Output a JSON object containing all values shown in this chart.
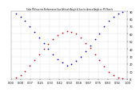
{
  "title": "Solar PV/Inverter Performance Sun Altitude Angle & Sun Incidence Angle on PV Panels",
  "bg_color": "#ffffff",
  "grid_color": "#888888",
  "red_color": "#cc0000",
  "blue_color": "#0000cc",
  "ylim": [
    0,
    90
  ],
  "sun_altitude_x": [
    0.04,
    0.08,
    0.12,
    0.16,
    0.2,
    0.24,
    0.28,
    0.32,
    0.36,
    0.4,
    0.44,
    0.48,
    0.52,
    0.56,
    0.6,
    0.64,
    0.68,
    0.72,
    0.76,
    0.8,
    0.84,
    0.88,
    0.92,
    0.96
  ],
  "sun_altitude_y": [
    2,
    5,
    11,
    18,
    25,
    33,
    40,
    47,
    53,
    58,
    62,
    64,
    63,
    60,
    55,
    48,
    41,
    33,
    25,
    17,
    10,
    5,
    2,
    1
  ],
  "incidence_x": [
    0.04,
    0.08,
    0.12,
    0.16,
    0.2,
    0.24,
    0.28,
    0.32,
    0.36,
    0.4,
    0.44,
    0.48,
    0.52,
    0.56,
    0.6,
    0.64,
    0.68,
    0.72,
    0.76,
    0.8,
    0.84,
    0.88,
    0.92,
    0.96
  ],
  "incidence_y": [
    87,
    83,
    77,
    70,
    63,
    55,
    48,
    40,
    33,
    27,
    22,
    18,
    20,
    24,
    30,
    37,
    45,
    53,
    61,
    70,
    77,
    83,
    87,
    89
  ],
  "ytick_locs": [
    0,
    10,
    20,
    30,
    40,
    50,
    60,
    70,
    80,
    90
  ],
  "ytick_labels": [
    "0",
    "10",
    "20",
    "30",
    "40",
    "50",
    "60",
    "70",
    "80",
    "90"
  ],
  "xtick_count": 13,
  "marker_size": 1.5,
  "title_fontsize": 1.8,
  "tick_fontsize": 2.5
}
